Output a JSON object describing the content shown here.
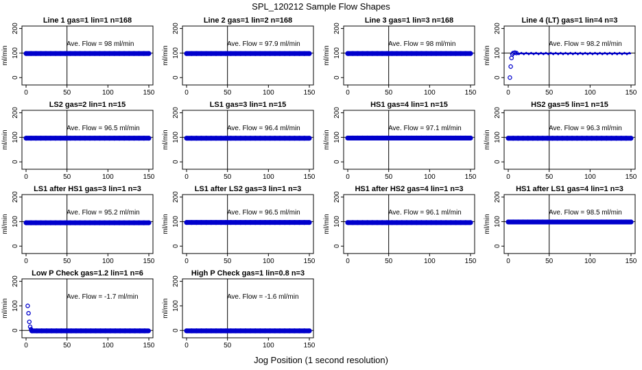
{
  "title": "SPL_120212  Sample Flow Shapes",
  "xlabel": "Jog Position (1 second resolution)",
  "chart_data": [
    {
      "type": "scatter",
      "title": "Line 1 gas=1 lin=1 n=168",
      "ylabel": "ml/min",
      "xlim": [
        0,
        150
      ],
      "ylim": [
        -30,
        210
      ],
      "xticks": [
        0,
        50,
        100,
        150
      ],
      "yticks": [
        0,
        100,
        200
      ],
      "vline": 50,
      "hline": 100,
      "annotation": "Ave. Flow =  98  ml/min",
      "series": [
        {
          "x": [
            0,
            150
          ],
          "y": [
            98,
            98
          ],
          "pattern": "steady"
        }
      ],
      "color": "#0000cc"
    },
    {
      "type": "scatter",
      "title": "Line 2 gas=1 lin=2 n=168",
      "ylabel": "ml/min",
      "xlim": [
        0,
        150
      ],
      "ylim": [
        -30,
        210
      ],
      "xticks": [
        0,
        50,
        100,
        150
      ],
      "yticks": [
        0,
        100,
        200
      ],
      "vline": 50,
      "hline": 100,
      "annotation": "Ave. Flow =  97.9  ml/min",
      "series": [
        {
          "x": [
            0,
            150
          ],
          "y": [
            97.9,
            97.9
          ],
          "pattern": "steady"
        }
      ],
      "color": "#0000cc"
    },
    {
      "type": "scatter",
      "title": "Line 3 gas=1 lin=3 n=168",
      "ylabel": "ml/min",
      "xlim": [
        0,
        150
      ],
      "ylim": [
        -30,
        210
      ],
      "xticks": [
        0,
        50,
        100,
        150
      ],
      "yticks": [
        0,
        100,
        200
      ],
      "vline": 50,
      "hline": 100,
      "annotation": "Ave. Flow =  98  ml/min",
      "series": [
        {
          "x": [
            0,
            150
          ],
          "y": [
            98,
            98
          ],
          "pattern": "steady"
        }
      ],
      "color": "#0000cc"
    },
    {
      "type": "scatter",
      "title": "Line 4 (LT) gas=1 lin=4 n=3",
      "ylabel": "ml/min",
      "xlim": [
        0,
        150
      ],
      "ylim": [
        -30,
        210
      ],
      "xticks": [
        0,
        50,
        100,
        150
      ],
      "yticks": [
        0,
        100,
        200
      ],
      "vline": 50,
      "hline": 100,
      "annotation": "Ave. Flow =  98.2  ml/min",
      "series": [
        {
          "x": [
            2,
            3,
            4,
            5,
            6,
            8,
            10
          ],
          "y": [
            0,
            45,
            80,
            95,
            100,
            102,
            100
          ],
          "pattern": "rampup"
        },
        {
          "x": [
            10,
            150
          ],
          "y": [
            98,
            98
          ],
          "pattern": "thin"
        }
      ],
      "color": "#0000cc"
    },
    {
      "type": "scatter",
      "title": "LS2 gas=2 lin=1 n=15",
      "ylabel": "ml/min",
      "xlim": [
        0,
        150
      ],
      "ylim": [
        -30,
        210
      ],
      "xticks": [
        0,
        50,
        100,
        150
      ],
      "yticks": [
        0,
        100,
        200
      ],
      "vline": 50,
      "hline": 100,
      "annotation": "Ave. Flow =  96.5  ml/min",
      "series": [
        {
          "x": [
            0,
            150
          ],
          "y": [
            96.5,
            96.5
          ],
          "pattern": "steady"
        }
      ],
      "color": "#0000cc"
    },
    {
      "type": "scatter",
      "title": "LS1 gas=3 lin=1 n=15",
      "ylabel": "ml/min",
      "xlim": [
        0,
        150
      ],
      "ylim": [
        -30,
        210
      ],
      "xticks": [
        0,
        50,
        100,
        150
      ],
      "yticks": [
        0,
        100,
        200
      ],
      "vline": 50,
      "hline": 100,
      "annotation": "Ave. Flow =  96.4  ml/min",
      "series": [
        {
          "x": [
            0,
            150
          ],
          "y": [
            96.4,
            96.4
          ],
          "pattern": "steady"
        }
      ],
      "color": "#0000cc"
    },
    {
      "type": "scatter",
      "title": "HS1 gas=4 lin=1 n=15",
      "ylabel": "ml/min",
      "xlim": [
        0,
        150
      ],
      "ylim": [
        -30,
        210
      ],
      "xticks": [
        0,
        50,
        100,
        150
      ],
      "yticks": [
        0,
        100,
        200
      ],
      "vline": 50,
      "hline": 100,
      "annotation": "Ave. Flow =  97.1  ml/min",
      "series": [
        {
          "x": [
            0,
            150
          ],
          "y": [
            97.1,
            97.1
          ],
          "pattern": "steady"
        }
      ],
      "color": "#0000cc"
    },
    {
      "type": "scatter",
      "title": "HS2 gas=5 lin=1 n=15",
      "ylabel": "ml/min",
      "xlim": [
        0,
        150
      ],
      "ylim": [
        -30,
        210
      ],
      "xticks": [
        0,
        50,
        100,
        150
      ],
      "yticks": [
        0,
        100,
        200
      ],
      "vline": 50,
      "hline": 100,
      "annotation": "Ave. Flow =  96.3  ml/min",
      "series": [
        {
          "x": [
            0,
            150
          ],
          "y": [
            96.3,
            96.3
          ],
          "pattern": "steady"
        }
      ],
      "color": "#0000cc"
    },
    {
      "type": "scatter",
      "title": "LS1 after HS1 gas=3 lin=1 n=3",
      "ylabel": "ml/min",
      "xlim": [
        0,
        150
      ],
      "ylim": [
        -30,
        210
      ],
      "xticks": [
        0,
        50,
        100,
        150
      ],
      "yticks": [
        0,
        100,
        200
      ],
      "vline": 50,
      "hline": 100,
      "annotation": "Ave. Flow =  95.2  ml/min",
      "series": [
        {
          "x": [
            0,
            150
          ],
          "y": [
            95.2,
            95.2
          ],
          "pattern": "steady"
        }
      ],
      "color": "#0000cc"
    },
    {
      "type": "scatter",
      "title": "LS1 after LS2 gas=3 lin=1 n=3",
      "ylabel": "ml/min",
      "xlim": [
        0,
        150
      ],
      "ylim": [
        -30,
        210
      ],
      "xticks": [
        0,
        50,
        100,
        150
      ],
      "yticks": [
        0,
        100,
        200
      ],
      "vline": 50,
      "hline": 100,
      "annotation": "Ave. Flow =  96.5  ml/min",
      "series": [
        {
          "x": [
            0,
            150
          ],
          "y": [
            96.5,
            96.5
          ],
          "pattern": "steady"
        }
      ],
      "color": "#0000cc"
    },
    {
      "type": "scatter",
      "title": "HS1 after HS2 gas=4 lin=1 n=3",
      "ylabel": "ml/min",
      "xlim": [
        0,
        150
      ],
      "ylim": [
        -30,
        210
      ],
      "xticks": [
        0,
        50,
        100,
        150
      ],
      "yticks": [
        0,
        100,
        200
      ],
      "vline": 50,
      "hline": 100,
      "annotation": "Ave. Flow =  96.1  ml/min",
      "series": [
        {
          "x": [
            0,
            150
          ],
          "y": [
            96.1,
            96.1
          ],
          "pattern": "steady"
        }
      ],
      "color": "#0000cc"
    },
    {
      "type": "scatter",
      "title": "HS1 after LS1 gas=4 lin=1 n=3",
      "ylabel": "ml/min",
      "xlim": [
        0,
        150
      ],
      "ylim": [
        -30,
        210
      ],
      "xticks": [
        0,
        50,
        100,
        150
      ],
      "yticks": [
        0,
        100,
        200
      ],
      "vline": 50,
      "hline": 100,
      "annotation": "Ave. Flow =  98.5  ml/min",
      "series": [
        {
          "x": [
            0,
            150
          ],
          "y": [
            98.5,
            98.5
          ],
          "pattern": "steady"
        }
      ],
      "color": "#0000cc"
    },
    {
      "type": "scatter",
      "title": "Low P Check gas=1.2 lin=1 n=6",
      "ylabel": "ml/min",
      "xlim": [
        0,
        150
      ],
      "ylim": [
        -30,
        210
      ],
      "xticks": [
        0,
        50,
        100,
        150
      ],
      "yticks": [
        0,
        100,
        200
      ],
      "vline": 50,
      "hline": 0,
      "annotation": "Ave. Flow =  -1.7  ml/min",
      "series": [
        {
          "x": [
            2,
            3,
            4,
            5,
            6,
            7
          ],
          "y": [
            100,
            70,
            35,
            15,
            5,
            0
          ],
          "pattern": "decay"
        },
        {
          "x": [
            7,
            150
          ],
          "y": [
            -1.7,
            -1.7
          ],
          "pattern": "steady"
        }
      ],
      "color": "#0000cc"
    },
    {
      "type": "scatter",
      "title": "High P Check gas=1 lin=0.8 n=3",
      "ylabel": "ml/min",
      "xlim": [
        0,
        150
      ],
      "ylim": [
        -30,
        210
      ],
      "xticks": [
        0,
        50,
        100,
        150
      ],
      "yticks": [
        0,
        100,
        200
      ],
      "vline": 50,
      "hline": 0,
      "annotation": "Ave. Flow =  -1.6  ml/min",
      "series": [
        {
          "x": [
            0,
            150
          ],
          "y": [
            -1.6,
            -1.6
          ],
          "pattern": "steady"
        }
      ],
      "color": "#0000cc"
    }
  ]
}
